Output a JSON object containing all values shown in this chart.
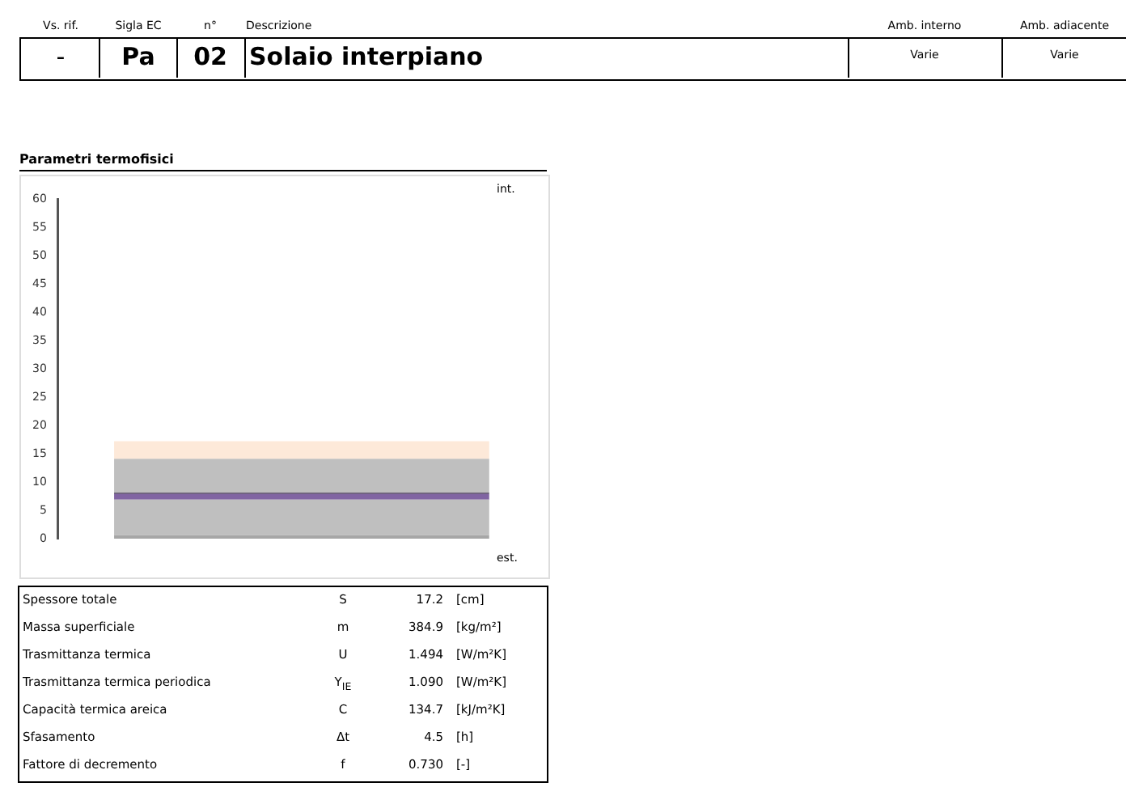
{
  "chart_data": {
    "type": "bar",
    "title": "Parametri termofisici",
    "categories": [
      null
    ],
    "stacked": true,
    "tick_labels": "y",
    "grid": false,
    "legend": false,
    "series": [
      {
        "color": "#a6a6a6",
        "values": [
          0.6
        ]
      },
      {
        "color": "#bfbfbf",
        "values": [
          6.3
        ]
      },
      {
        "color": "#8064a2",
        "values": [
          1.0
        ]
      },
      {
        "color": "#3f3151",
        "values": [
          0.2
        ]
      },
      {
        "color": "#bfbfbf",
        "values": [
          6.0
        ]
      },
      {
        "color": "#fde9d9",
        "values": [
          3.1
        ]
      }
    ],
    "ylim": [
      0,
      60
    ],
    "yticks": [
      0,
      5,
      10,
      15,
      20,
      25,
      30,
      35,
      40,
      45,
      50,
      55,
      60
    ],
    "annotations": [
      "Vs. rif.",
      "Sigla EC",
      "n°",
      "Descrizione",
      "Amb. interno",
      "Amb. adiacente",
      "-",
      "Pa",
      "02",
      "Solaio interpiano",
      "Varie",
      "Varie",
      "int.",
      "est.",
      "Spessore totale",
      "S",
      "17.2",
      "[cm]",
      "Massa superficiale",
      "m",
      "384.9",
      "[kg/m²]",
      "Trasmittanza termica",
      "U",
      "1.494",
      "[W/m²K]",
      "Trasmittanza termica periodica",
      "Y$_{IE}$",
      "1.090",
      "[W/m²K]",
      "Capacità termica areica",
      "C",
      "134.7",
      "[kJ/m²K]",
      "Sfasamento",
      "Δt",
      "4.5",
      "[h]",
      "Fattore di decremento",
      "f",
      "0.730",
      "[-]"
    ]
  }
}
